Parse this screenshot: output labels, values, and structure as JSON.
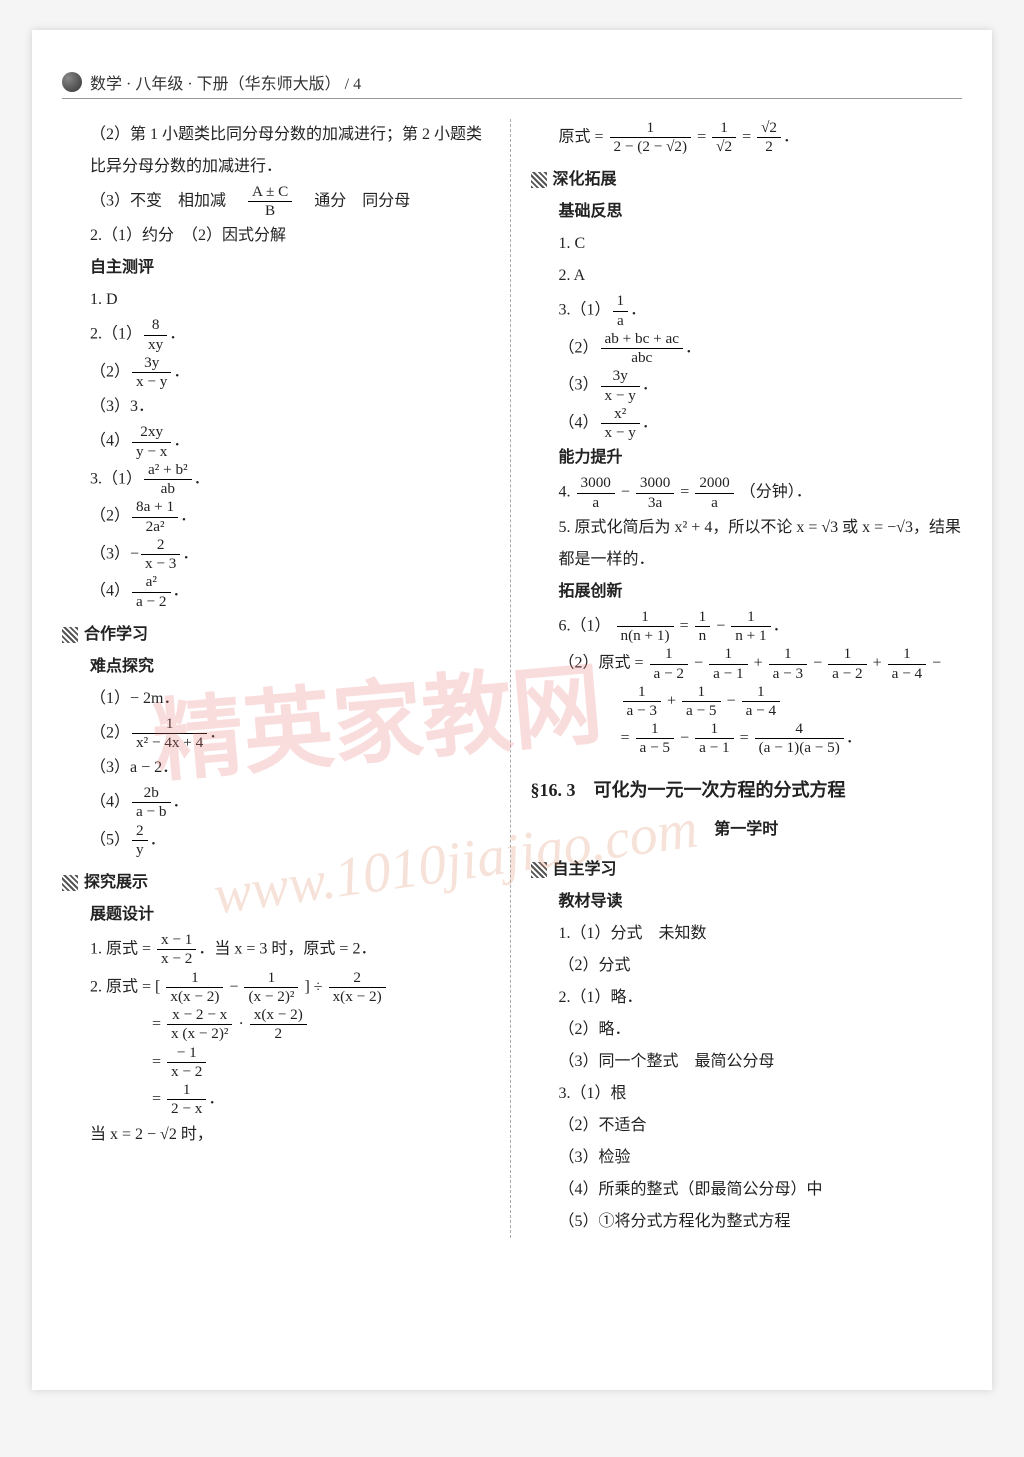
{
  "header": {
    "title": "数学 · 八年级 · 下册（华东师大版） /  4"
  },
  "watermark": {
    "text": "精英家教网",
    "url": "www.1010jiajiao.com"
  },
  "left": {
    "p1": "（2）第 1 小题类比同分母分数的加减进行；第 2 小题类比异分母分数的加减进行．",
    "p2_pre": "（3）不变　相加减　",
    "p2_post": "　通分　同分母",
    "frac_A": "A ± C",
    "frac_B": "B",
    "p3": "2.（1）约分　（2）因式分解",
    "h_zzcp": "自主测评",
    "i1": "1. D",
    "i2a": "2.（1）",
    "f2a_n": "8",
    "f2a_d": "xy",
    "i2b": "（2）",
    "f2b_n": "3y",
    "f2b_d": "x − y",
    "i2c": "（3）3．",
    "i2d": "（4）",
    "f2d_n": "2xy",
    "f2d_d": "y − x",
    "i3a": "3.（1）",
    "f3a_n": "a² + b²",
    "f3a_d": "ab",
    "i3b": "（2）",
    "f3b_n": "8a + 1",
    "f3b_d": "2a²",
    "i3c": "（3）−",
    "f3c_n": "2",
    "f3c_d": "x − 3",
    "i3d": "（4）",
    "f3d_n": "a²",
    "f3d_d": "a − 2",
    "h_hzxx": "合作学习",
    "h_ndtj": "难点探究",
    "n1": "（1）− 2m．",
    "n2": "（2）",
    "fn2_n": "1",
    "fn2_d": "x² − 4x + 4",
    "n3": "（3）a − 2．",
    "n4": "（4）",
    "fn4_n": "2b",
    "fn4_d": "a − b",
    "n5": "（5）",
    "fn5_n": "2",
    "fn5_d": "y",
    "h_tjzs": "探究展示",
    "h_ztsj": "展题设计",
    "z1_pre": "1. 原式 = ",
    "fz1_n": "x − 1",
    "fz1_d": "x − 2",
    "z1_post": "．当 x = 3 时，原式 = 2．",
    "z2_pre": "2. 原式 = [ ",
    "fz2a_n": "1",
    "fz2a_d": "x(x − 2)",
    "z2_mid1": " − ",
    "fz2b_n": "1",
    "fz2b_d": "(x − 2)²",
    "z2_mid2": " ] ÷ ",
    "fz2c_n": "2",
    "fz2c_d": "x(x − 2)",
    "z2l2_eq": "= ",
    "fz2d_n": "x − 2 − x",
    "fz2d_d": "x (x − 2)²",
    "z2l2_mid": " · ",
    "fz2e_n": "x(x − 2)",
    "fz2e_d": "2",
    "fz2f_n": "− 1",
    "fz2f_d": "x − 2",
    "fz2g_n": "1",
    "fz2g_d": "2 − x",
    "z2_last": "当 x = 2 − √2 时，"
  },
  "right": {
    "r0_pre": "原式 = ",
    "fr0a_n": "1",
    "fr0a_d": "2 − (2 − √2)",
    "r0_eq1": " = ",
    "fr0b_n": "1",
    "fr0b_d": "√2",
    "r0_eq2": " = ",
    "fr0c_n": "√2",
    "fr0c_d": "2",
    "h_shtz": "深化拓展",
    "h_jcfs": "基础反思",
    "b1": "1. C",
    "b2": "2. A",
    "b3a": "3.（1）",
    "fb3a_n": "1",
    "fb3a_d": "a",
    "b3b": "（2）",
    "fb3b_n": "ab + bc + ac",
    "fb3b_d": "abc",
    "b3c": "（3）",
    "fb3c_n": "3y",
    "fb3c_d": "x − y",
    "b3d": "（4）",
    "fb3d_n": "x²",
    "fb3d_d": "x − y",
    "h_nlts": "能力提升",
    "c4_pre": "4. ",
    "fc4a_n": "3000",
    "fc4a_d": "a",
    "c4_m1": " − ",
    "fc4b_n": "3000",
    "fc4b_d": "3a",
    "c4_m2": " = ",
    "fc4c_n": "2000",
    "fc4c_d": "a",
    "c4_post": "（分钟）．",
    "c5": "5. 原式化简后为 x² + 4，所以不论 x = √3 或 x = −√3，结果都是一样的．",
    "h_tzcx": "拓展创新",
    "c6a_pre": "6.（1）",
    "fc6a_n": "1",
    "fc6a_d": "n(n + 1)",
    "c6a_m1": " = ",
    "fc6b_n": "1",
    "fc6b_d": "n",
    "c6a_m2": " − ",
    "fc6c_n": "1",
    "fc6c_d": "n + 1",
    "c6b_pre": "（2）原式 = ",
    "fc6d_n": "1",
    "fc6d_d": "a − 2",
    "fc6e_n": "1",
    "fc6e_d": "a − 1",
    "fc6f_n": "1",
    "fc6f_d": "a − 3",
    "fc6g_n": "1",
    "fc6g_d": "a − 5",
    "fc6h_n": "1",
    "fc6h_d": "a − 4",
    "fc6i_n": "4",
    "fc6i_d": "(a − 1)(a − 5)",
    "sec163": "§16. 3　可化为一元一次方程的分式方程",
    "sub_dyxs": "第一学时",
    "h_zzxx": "自主学习",
    "h_jcdd": "教材导读",
    "d1": "1.（1）分式　未知数",
    "d2": "（2）分式",
    "d3": "2.（1）略．",
    "d4": "（2）略．",
    "d5": "（3）同一个整式　最简公分母",
    "d6": "3.（1）根",
    "d7": "（2）不适合",
    "d8": "（3）检验",
    "d9": "（4）所乘的整式（即最简公分母）中",
    "d10": "（5）①将分式方程化为整式方程"
  }
}
